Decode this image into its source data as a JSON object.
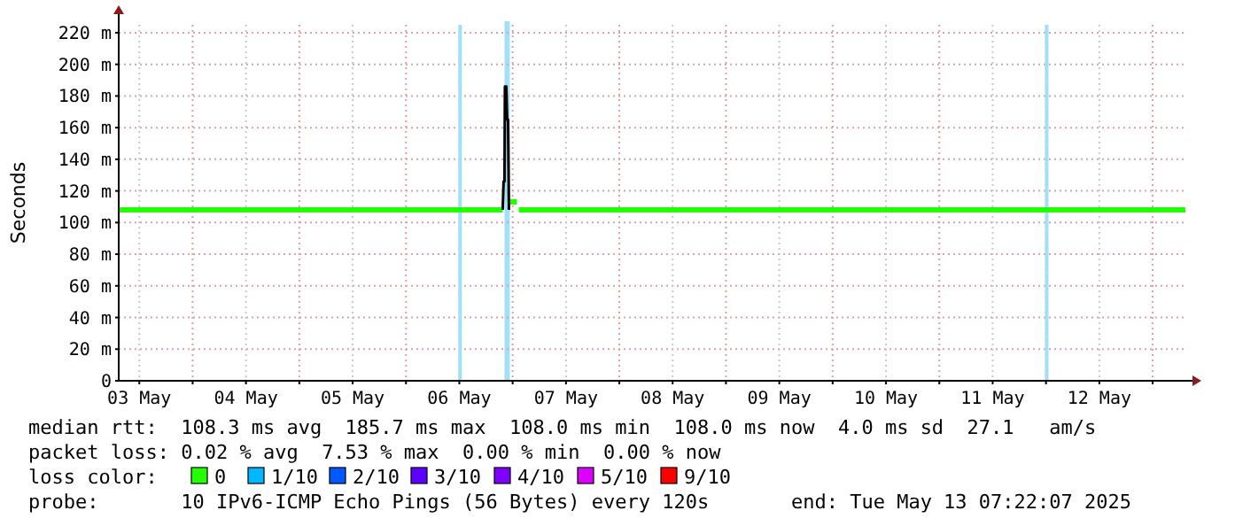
{
  "chart_data": {
    "type": "line",
    "ylabel": "Seconds",
    "xlim": [
      "2025-05-03T07:22",
      "2025-05-13T07:22"
    ],
    "xticks": [
      {
        "value": "2025-05-03T12:00",
        "label": "03 May"
      },
      {
        "value": "2025-05-04T00:00",
        "label": null
      },
      {
        "value": "2025-05-04T12:00",
        "label": "04 May"
      },
      {
        "value": "2025-05-05T00:00",
        "label": null
      },
      {
        "value": "2025-05-05T12:00",
        "label": "05 May"
      },
      {
        "value": "2025-05-06T00:00",
        "label": null
      },
      {
        "value": "2025-05-06T12:00",
        "label": "06 May"
      },
      {
        "value": "2025-05-07T00:00",
        "label": null
      },
      {
        "value": "2025-05-07T12:00",
        "label": "07 May"
      },
      {
        "value": "2025-05-08T00:00",
        "label": null
      },
      {
        "value": "2025-05-08T12:00",
        "label": "08 May"
      },
      {
        "value": "2025-05-09T00:00",
        "label": null
      },
      {
        "value": "2025-05-09T12:00",
        "label": "09 May"
      },
      {
        "value": "2025-05-10T00:00",
        "label": null
      },
      {
        "value": "2025-05-10T12:00",
        "label": "10 May"
      },
      {
        "value": "2025-05-11T00:00",
        "label": null
      },
      {
        "value": "2025-05-11T12:00",
        "label": "11 May"
      },
      {
        "value": "2025-05-12T00:00",
        "label": null
      },
      {
        "value": "2025-05-12T12:00",
        "label": "12 May"
      },
      {
        "value": "2025-05-13T00:00",
        "label": null
      }
    ],
    "ylim": [
      0,
      225
    ],
    "yticks": [
      {
        "value": 0,
        "label": "0"
      },
      {
        "value": 20,
        "label": "20 m"
      },
      {
        "value": 40,
        "label": "40 m"
      },
      {
        "value": 60,
        "label": "60 m"
      },
      {
        "value": 80,
        "label": "80 m"
      },
      {
        "value": 100,
        "label": "100 m"
      },
      {
        "value": 120,
        "label": "120 m"
      },
      {
        "value": 140,
        "label": "140 m"
      },
      {
        "value": 160,
        "label": "160 m"
      },
      {
        "value": 180,
        "label": "180 m"
      },
      {
        "value": 200,
        "label": "200 m"
      },
      {
        "value": 220,
        "label": "220 m"
      }
    ],
    "grid": true,
    "legend": "bottom",
    "legend_title": "loss color:",
    "series": [
      {
        "name": "0",
        "color": "#22ff00",
        "x": [
          "2025-05-03T07:22",
          "2025-05-06T21:46",
          "2025-05-06T22:10",
          "2025-05-06T23:22",
          "2025-05-07T00:58",
          "2025-05-07T01:10",
          "2025-05-07T01:22",
          "2025-05-13T07:22"
        ],
        "values": [
          108,
          108,
          null,
          113,
          113,
          null,
          108,
          108
        ]
      },
      {
        "color": "#000000",
        "x": [
          "2025-05-06T21:46",
          "2025-05-06T21:58",
          "2025-05-06T22:10",
          "2025-05-06T22:16",
          "2025-05-06T22:34",
          "2025-05-06T22:46",
          "2025-05-06T22:58",
          "2025-05-06T23:10"
        ],
        "values": [
          108,
          126,
          126,
          186,
          186,
          165,
          165,
          108
        ]
      },
      {
        "name": "1/10",
        "color": "#00b8ff"
      },
      {
        "name": "2/10",
        "color": "#0059ff"
      },
      {
        "name": "3/10",
        "color": "#5e00ff"
      },
      {
        "name": "4/10",
        "color": "#7e00ff"
      },
      {
        "name": "5/10",
        "color": "#dd00ff"
      },
      {
        "name": "9/10",
        "color": "#ff0000"
      }
    ],
    "bands": [
      {
        "axis": "x",
        "from": "2025-05-06T22:10",
        "to": "2025-05-06T23:22",
        "color": "#a0e0f8"
      }
    ],
    "ref_lines": [
      {
        "axis": "x",
        "value": "2025-05-06T12:10",
        "color": "#a0e0f8"
      },
      {
        "axis": "x",
        "value": "2025-05-12T00:10",
        "color": "#a0e0f8"
      }
    ],
    "annotations": [
      "median rtt:  108.3 ms avg  185.7 ms max  108.0 ms min  108.0 ms now  4.0 ms sd  27.1   am/s",
      "packet loss: 0.02 % avg  7.53 % max  0.00 % min  0.00 % now",
      "probe:       10 IPv6-ICMP Echo Pings (56 Bytes) every 120s       end: Tue May 13 07:22:07 2025"
    ]
  }
}
